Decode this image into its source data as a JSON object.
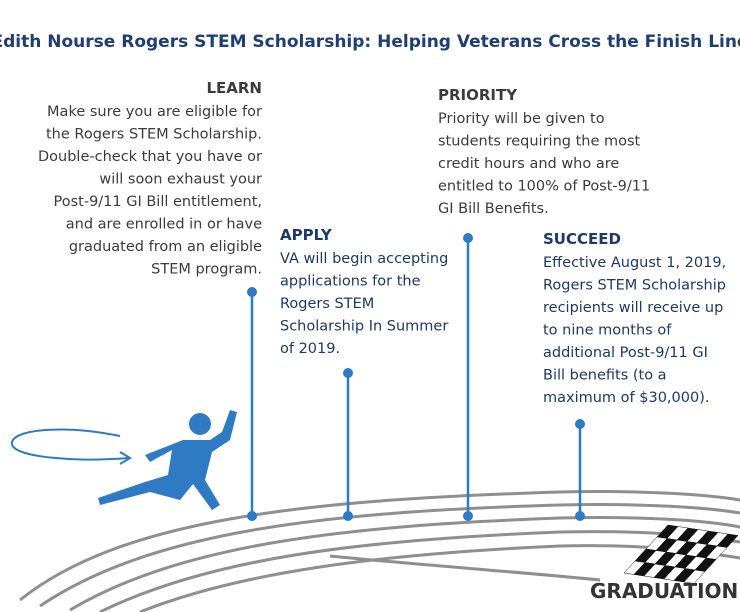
{
  "title": "Edith Nourse Rogers STEM Scholarship: Helping Veterans Cross the Finish Line",
  "steps": [
    {
      "heading": "LEARN",
      "lines": [
        "Make sure you are eligible for",
        "the Rogers STEM Scholarship.",
        "Double-check that you have or",
        "will soon exhaust your",
        "Post-9/11 GI Bill entitlement,",
        "and are enrolled in or have",
        "graduated from an eligible",
        "STEM program."
      ]
    },
    {
      "heading": "APPLY",
      "lines": [
        "VA will begin accepting",
        "applications for the",
        "Rogers STEM",
        "Scholarship In Summer",
        "of 2019."
      ]
    },
    {
      "heading": "PRIORITY",
      "lines": [
        "Priority will be given to",
        "students requiring the most",
        "credit hours and who are",
        "entitled to 100% of Post-9/11",
        "GI Bill Benefits."
      ]
    },
    {
      "heading": "SUCCEED",
      "lines": [
        "Effective August 1, 2019,",
        "Rogers STEM Scholarship",
        "recipients will receive up",
        "to nine months of",
        "additional Post-9/11 GI",
        "Bill benefits (to a",
        "maximum of $30,000)."
      ]
    }
  ],
  "finish": "GRADUATION"
}
